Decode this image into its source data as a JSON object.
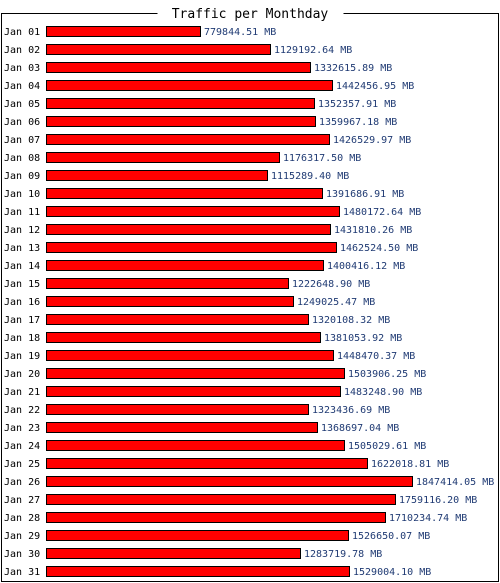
{
  "chart_data": {
    "type": "bar",
    "orientation": "horizontal",
    "title": "Traffic per Monthday",
    "unit": "MB",
    "bar_color": "#ff0000",
    "value_label_color": "#1f3a73",
    "categories": [
      "Jan 01",
      "Jan 02",
      "Jan 03",
      "Jan 04",
      "Jan 05",
      "Jan 06",
      "Jan 07",
      "Jan 08",
      "Jan 09",
      "Jan 10",
      "Jan 11",
      "Jan 12",
      "Jan 13",
      "Jan 14",
      "Jan 15",
      "Jan 16",
      "Jan 17",
      "Jan 18",
      "Jan 19",
      "Jan 20",
      "Jan 21",
      "Jan 22",
      "Jan 23",
      "Jan 24",
      "Jan 25",
      "Jan 26",
      "Jan 27",
      "Jan 28",
      "Jan 29",
      "Jan 30",
      "Jan 31"
    ],
    "values": [
      779844.51,
      1129192.64,
      1332615.89,
      1442456.95,
      1352357.91,
      1359967.18,
      1426529.97,
      1176317.5,
      1115289.4,
      1391686.91,
      1480172.64,
      1431810.26,
      1462524.5,
      1400416.12,
      1222648.9,
      1249025.47,
      1320108.32,
      1381053.92,
      1448470.37,
      1503906.25,
      1483248.9,
      1323436.69,
      1368697.04,
      1505029.61,
      1622018.81,
      1847414.05,
      1759116.2,
      1710234.74,
      1526650.07,
      1283719.78,
      1529004.1
    ],
    "value_labels": [
      "779844.51 MB",
      "1129192.64 MB",
      "1332615.89 MB",
      "1442456.95 MB",
      "1352357.91 MB",
      "1359967.18 MB",
      "1426529.97 MB",
      "1176317.50 MB",
      "1115289.40 MB",
      "1391686.91 MB",
      "1480172.64 MB",
      "1431810.26 MB",
      "1462524.50 MB",
      "1400416.12 MB",
      "1222648.90 MB",
      "1249025.47 MB",
      "1320108.32 MB",
      "1381053.92 MB",
      "1448470.37 MB",
      "1503906.25 MB",
      "1483248.90 MB",
      "1323436.69 MB",
      "1368697.04 MB",
      "1505029.61 MB",
      "1622018.81 MB",
      "1847414.05 MB",
      "1759116.20 MB",
      "1710234.74 MB",
      "1526650.07 MB",
      "1283719.78 MB",
      "1529004.10 MB"
    ]
  }
}
